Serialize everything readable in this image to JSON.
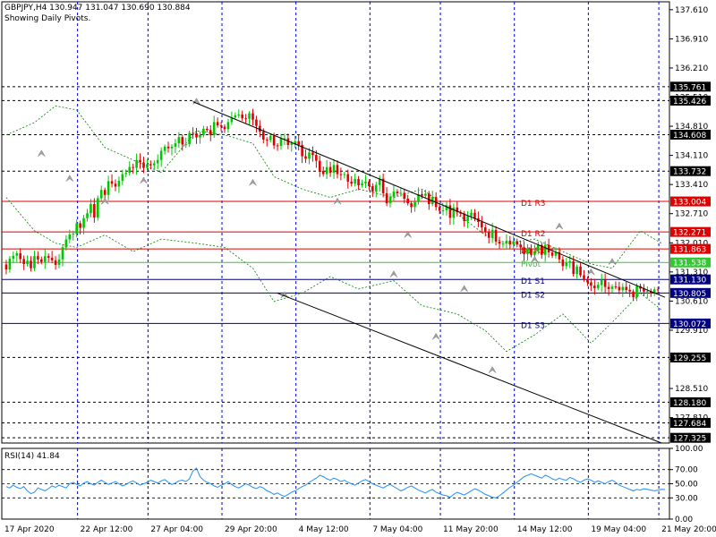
{
  "header": {
    "instrument_line": "GBPJPY,H4  130.947 131.047 130.690 130.884",
    "indicator_line": "Showing Daily Pivots."
  },
  "chart_data": [
    {
      "type": "candlestick",
      "symbol": "GBPJPY",
      "timeframe": "H4",
      "ohlc_last": {
        "open": 130.947,
        "high": 131.047,
        "low": 130.69,
        "close": 130.884
      },
      "ylim": [
        127.2,
        137.8
      ],
      "y_tick_labels": [
        "137.610",
        "136.910",
        "136.210",
        "135.510",
        "134.810",
        "134.110",
        "133.410",
        "132.710",
        "132.010",
        "131.310",
        "130.610",
        "129.910",
        "129.210",
        "128.510",
        "127.810"
      ],
      "x_tick_labels": [
        "17 Apr 2020",
        "22 Apr 12:00",
        "27 Apr 04:00",
        "29 Apr 20:00",
        "4 May 12:00",
        "7 May 04:00",
        "11 May 20:00",
        "14 May 12:00",
        "19 May 04:00",
        "21 May 20:00"
      ],
      "price_levels": [
        {
          "value": 135.761,
          "label": "135.761",
          "kind": "dashed"
        },
        {
          "value": 135.426,
          "label": "135.426",
          "kind": "dashed"
        },
        {
          "value": 134.608,
          "label": "134.608",
          "kind": "dashed"
        },
        {
          "value": 133.732,
          "label": "133.732",
          "kind": "dashed"
        },
        {
          "value": 133.004,
          "label": "133.004",
          "kind": "pivot-r",
          "name": "D1  R3"
        },
        {
          "value": 132.271,
          "label": "132.271",
          "kind": "pivot-r",
          "name": "D1  R2"
        },
        {
          "value": 131.863,
          "label": "131.863",
          "kind": "pivot-r",
          "name": "D1  R1"
        },
        {
          "value": 131.538,
          "label": "131.538",
          "kind": "pivot-p",
          "name": "Pivot"
        },
        {
          "value": 131.13,
          "label": "131.130",
          "kind": "pivot-s",
          "name": "D1  S1"
        },
        {
          "value": 130.805,
          "label": "130.805",
          "kind": "pivot-s",
          "name": "D1  S2"
        },
        {
          "value": 130.072,
          "label": "130.072",
          "kind": "pivot-s",
          "name": "D1  S3"
        },
        {
          "value": 129.255,
          "label": "129.255",
          "kind": "dashed"
        },
        {
          "value": 128.18,
          "label": "128.180",
          "kind": "dashed"
        },
        {
          "value": 127.684,
          "label": "127.684",
          "kind": "dashed"
        },
        {
          "value": 127.325,
          "label": "127.325",
          "kind": "dashed"
        }
      ],
      "trendlines": [
        {
          "name": "upper-channel",
          "from": {
            "bar": 53,
            "price": 135.4
          },
          "to": {
            "bar": 187,
            "price": 130.7
          }
        },
        {
          "name": "lower-channel",
          "from": {
            "bar": 77,
            "price": 130.8
          },
          "to": {
            "bar": 186,
            "price": 127.2
          }
        }
      ],
      "bars": 188,
      "colors": {
        "bull": "#00c800",
        "bear": "#e00000",
        "resistance": "#e00000",
        "pivot": "#32c832",
        "support": "#000080",
        "grid": "#0000c8",
        "trend": "#000000",
        "envelope": "#008000",
        "fractal": "#a0a0a0"
      },
      "close_series": [
        131.37,
        131.63,
        131.7,
        131.76,
        131.62,
        131.5,
        131.58,
        131.4,
        131.69,
        131.61,
        131.55,
        131.69,
        131.65,
        131.59,
        131.48,
        131.61,
        131.9,
        132.09,
        132.21,
        132.23,
        132.48,
        132.37,
        132.6,
        132.72,
        132.94,
        132.62,
        133.08,
        133.28,
        133.16,
        133.49,
        133.43,
        133.36,
        133.5,
        133.66,
        133.69,
        133.83,
        133.81,
        134.0,
        133.94,
        133.81,
        133.9,
        133.87,
        133.92,
        134.0,
        134.22,
        134.32,
        134.28,
        134.32,
        134.4,
        134.55,
        134.37,
        134.38,
        134.65,
        134.64,
        134.54,
        134.6,
        134.75,
        134.72,
        134.6,
        134.91,
        134.83,
        134.8,
        134.74,
        134.91,
        135.02,
        135.07,
        135.09,
        135.0,
        134.99,
        135.12,
        134.97,
        134.82,
        134.68,
        134.49,
        134.48,
        134.58,
        134.35,
        134.34,
        134.52,
        134.52,
        134.36,
        134.4,
        134.45,
        134.36,
        134.09,
        134.03,
        134.18,
        134.12,
        133.98,
        133.74,
        133.66,
        133.83,
        133.69,
        133.88,
        133.66,
        133.65,
        133.66,
        133.48,
        133.43,
        133.54,
        133.39,
        133.44,
        133.48,
        133.37,
        133.24,
        133.4,
        133.55,
        133.2,
        132.96,
        133.11,
        133.24,
        133.2,
        133.21,
        133.07,
        132.96,
        132.87,
        132.99,
        133.18,
        133.14,
        133.19,
        132.94,
        133.11,
        132.87,
        132.78,
        132.79,
        132.91,
        132.61,
        132.86,
        132.74,
        132.71,
        132.53,
        132.65,
        132.73,
        132.6,
        132.51,
        132.38,
        132.28,
        132.13,
        132.32,
        132.04,
        131.99,
        131.99,
        132.06,
        131.97,
        132.05,
        131.97,
        131.9,
        131.74,
        131.87,
        131.72,
        131.81,
        131.96,
        131.72,
        131.96,
        131.78,
        131.7,
        131.79,
        131.61,
        131.45,
        131.53,
        131.57,
        131.26,
        131.44,
        131.23,
        131.14,
        131.06,
        130.98,
        130.92,
        131.0,
        131.12,
        130.95,
        130.9,
        130.96,
        130.95,
        130.87,
        130.95,
        130.88,
        130.84,
        130.7,
        130.97,
        130.91,
        130.84,
        130.85,
        130.8,
        130.89,
        130.88
      ],
      "envelope_points_upper": [
        [
          0,
          134.6
        ],
        [
          8,
          134.9
        ],
        [
          14,
          135.3
        ],
        [
          20,
          135.2
        ],
        [
          28,
          134.3
        ],
        [
          36,
          134.0
        ],
        [
          44,
          133.7
        ],
        [
          54,
          134.7
        ],
        [
          62,
          134.6
        ],
        [
          70,
          134.4
        ],
        [
          76,
          133.6
        ],
        [
          84,
          133.3
        ],
        [
          92,
          133.1
        ],
        [
          100,
          133.3
        ],
        [
          110,
          133.1
        ],
        [
          118,
          133.3
        ],
        [
          128,
          132.7
        ],
        [
          136,
          132.2
        ],
        [
          142,
          132.0
        ],
        [
          150,
          132.1
        ],
        [
          158,
          131.8
        ],
        [
          166,
          131.5
        ],
        [
          172,
          131.4
        ],
        [
          180,
          132.3
        ],
        [
          186,
          132.0
        ]
      ],
      "envelope_points_lower": [
        [
          0,
          133.1
        ],
        [
          8,
          132.3
        ],
        [
          14,
          132.0
        ],
        [
          20,
          131.9
        ],
        [
          28,
          132.2
        ],
        [
          36,
          131.8
        ],
        [
          44,
          132.1
        ],
        [
          54,
          132.0
        ],
        [
          62,
          131.9
        ],
        [
          70,
          131.4
        ],
        [
          76,
          130.6
        ],
        [
          84,
          130.8
        ],
        [
          92,
          131.2
        ],
        [
          100,
          130.9
        ],
        [
          110,
          131.1
        ],
        [
          118,
          130.5
        ],
        [
          128,
          130.3
        ],
        [
          136,
          129.9
        ],
        [
          142,
          129.4
        ],
        [
          150,
          129.8
        ],
        [
          158,
          130.3
        ],
        [
          166,
          129.6
        ],
        [
          172,
          130.1
        ],
        [
          180,
          130.8
        ],
        [
          186,
          130.4
        ]
      ]
    },
    {
      "type": "line",
      "name": "RSI(14)",
      "label": "RSI(14) 41.84",
      "last_value": 41.84,
      "ylim": [
        0,
        100
      ],
      "y_tick_labels": [
        "100.00",
        "70.00",
        "50.00",
        "30.00",
        "0.00"
      ],
      "levels": [
        70,
        50,
        30
      ],
      "values": [
        46,
        44,
        48,
        45,
        43,
        46,
        40,
        36,
        38,
        44,
        42,
        40,
        43,
        47,
        45,
        48,
        46,
        44,
        50,
        52,
        49,
        47,
        51,
        53,
        50,
        48,
        52,
        55,
        52,
        49,
        51,
        53,
        50,
        47,
        49,
        52,
        54,
        51,
        48,
        50,
        52,
        55,
        53,
        51,
        54,
        56,
        52,
        49,
        51,
        54,
        55,
        53,
        57,
        68,
        72,
        60,
        55,
        52,
        50,
        47,
        45,
        48,
        50,
        53,
        49,
        46,
        44,
        47,
        50,
        48,
        45,
        43,
        46,
        44,
        40,
        38,
        35,
        37,
        34,
        32,
        35,
        38,
        40,
        43,
        46,
        48,
        52,
        55,
        58,
        62,
        60,
        57,
        55,
        58,
        56,
        53,
        55,
        52,
        50,
        48,
        51,
        54,
        56,
        53,
        50,
        48,
        46,
        44,
        47,
        49,
        46,
        43,
        40,
        42,
        45,
        47,
        44,
        41,
        39,
        37,
        40,
        42,
        38,
        36,
        34,
        33,
        31,
        35,
        38,
        36,
        34,
        37,
        40,
        43,
        41,
        38,
        35,
        33,
        31,
        30,
        33,
        37,
        41,
        45,
        48,
        52,
        56,
        60,
        62,
        64,
        62,
        60,
        58,
        62,
        60,
        57,
        55,
        58,
        56,
        55,
        59,
        57,
        54,
        52,
        55,
        57,
        55,
        52,
        54,
        52,
        50,
        53,
        55,
        52,
        48,
        46,
        44,
        41.84,
        40,
        42,
        41,
        43,
        42,
        41,
        40,
        41,
        42,
        41.84
      ]
    }
  ]
}
